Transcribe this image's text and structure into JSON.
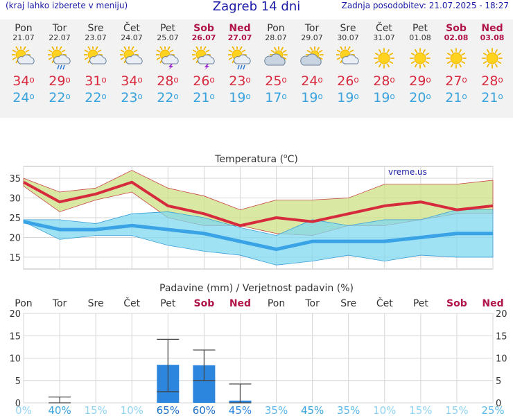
{
  "header": {
    "left_text": "(kraj lahko izberete v meniju)",
    "title": "Zagreb 14 dni",
    "updated": "Zadnja posodobitev: 21.07.2025 - 18:27"
  },
  "days": [
    {
      "name": "Pon",
      "date": "21.07",
      "weekend": false,
      "icon": "sun-cloud-icon",
      "tmax": "34",
      "tmin": "24"
    },
    {
      "name": "Tor",
      "date": "22.07",
      "weekend": false,
      "icon": "sun-cloud-rain-icon",
      "tmax": "29",
      "tmin": "22"
    },
    {
      "name": "Sre",
      "date": "23.07",
      "weekend": false,
      "icon": "sun-cloud-icon",
      "tmax": "31",
      "tmin": "22"
    },
    {
      "name": "Čet",
      "date": "24.07",
      "weekend": false,
      "icon": "sun-cloud-icon",
      "tmax": "34",
      "tmin": "23"
    },
    {
      "name": "Pet",
      "date": "25.07",
      "weekend": false,
      "icon": "sun-cloud-storm-icon",
      "tmax": "28",
      "tmin": "22"
    },
    {
      "name": "Sob",
      "date": "26.07",
      "weekend": true,
      "icon": "sun-cloud-storm-icon",
      "tmax": "26",
      "tmin": "21"
    },
    {
      "name": "Ned",
      "date": "27.07",
      "weekend": true,
      "icon": "sun-cloud-rain-icon",
      "tmax": "23",
      "tmin": "19"
    },
    {
      "name": "Pon",
      "date": "28.07",
      "weekend": false,
      "icon": "cloud-sun-icon",
      "tmax": "25",
      "tmin": "17"
    },
    {
      "name": "Tor",
      "date": "29.07",
      "weekend": false,
      "icon": "cloud-sun-icon",
      "tmax": "24",
      "tmin": "19"
    },
    {
      "name": "Sre",
      "date": "30.07",
      "weekend": false,
      "icon": "sun-cloud-icon",
      "tmax": "26",
      "tmin": "19"
    },
    {
      "name": "Čet",
      "date": "31.07",
      "weekend": false,
      "icon": "sun-icon",
      "tmax": "28",
      "tmin": "19"
    },
    {
      "name": "Pet",
      "date": "01.08",
      "weekend": false,
      "icon": "sun-icon",
      "tmax": "29",
      "tmin": "20"
    },
    {
      "name": "Sob",
      "date": "02.08",
      "weekend": true,
      "icon": "sun-icon",
      "tmax": "27",
      "tmin": "21"
    },
    {
      "name": "Ned",
      "date": "03.08",
      "weekend": true,
      "icon": "sun-icon",
      "tmax": "28",
      "tmin": "21"
    }
  ],
  "degree_symbol": "o",
  "colors": {
    "tmax": "#d9293f",
    "tmin": "#3aa3dd",
    "weekend": "#b0144a",
    "precip": "#2d86de"
  },
  "chart_data": [
    {
      "type": "line",
      "title": "Temperatura (oC)",
      "watermark": "vreme.us",
      "categories": [
        "Pon",
        "Tor",
        "Sre",
        "Čet",
        "Pet",
        "Sob",
        "Ned",
        "Pon",
        "Tor",
        "Sre",
        "Čet",
        "Pet",
        "Sob",
        "Ned"
      ],
      "ylim": [
        12,
        38
      ],
      "yticks": [
        15,
        20,
        25,
        30,
        35
      ],
      "grid": true,
      "series": [
        {
          "values": [
            34,
            29,
            31,
            34,
            28,
            26,
            23,
            25,
            24,
            26,
            28,
            29,
            27,
            28
          ]
        },
        {
          "values": [
            24,
            22,
            22,
            23,
            22,
            21,
            19,
            17,
            19,
            19,
            19,
            20,
            21,
            21
          ]
        }
      ],
      "max_band": {
        "upper": [
          35,
          31.5,
          32.5,
          37,
          32.5,
          30.5,
          27,
          29.5,
          29.5,
          30,
          33.5,
          33.5,
          33.5,
          34.5
        ],
        "lower": [
          33,
          26.5,
          29.5,
          31.5,
          25,
          23,
          23,
          21,
          20.5,
          23,
          23,
          24.5,
          26,
          26
        ]
      },
      "min_band": {
        "upper": [
          24.5,
          24.5,
          23.5,
          26,
          26.5,
          25,
          22.5,
          20.5,
          24.5,
          23,
          24.5,
          24.5,
          27,
          27
        ],
        "lower": [
          24,
          19.5,
          20.5,
          20.5,
          18,
          16.5,
          15.5,
          13,
          14,
          15.5,
          14,
          15.5,
          15,
          15
        ]
      }
    },
    {
      "type": "bar",
      "title": "Padavine (mm) / Verjetnost padavin (%)",
      "categories": [
        "Pon",
        "Tor",
        "Sre",
        "Čet",
        "Pet",
        "Sob",
        "Ned",
        "Pon",
        "Tor",
        "Sre",
        "Čet",
        "Pet",
        "Sob",
        "Ned"
      ],
      "weekend": [
        false,
        false,
        false,
        false,
        false,
        true,
        true,
        false,
        false,
        false,
        false,
        false,
        true,
        true
      ],
      "ylim": [
        0,
        20
      ],
      "yticks": [
        0,
        5,
        10,
        15,
        20
      ],
      "values": [
        0,
        0,
        0,
        0,
        8.5,
        8.4,
        0.5,
        0,
        0,
        0,
        0,
        0,
        0,
        0
      ],
      "error_high": [
        null,
        1.3,
        null,
        null,
        14.2,
        11.8,
        4.2,
        null,
        null,
        null,
        null,
        null,
        null,
        null
      ],
      "error_low": [
        null,
        0,
        null,
        null,
        2.5,
        5,
        0,
        null,
        null,
        null,
        null,
        null,
        null,
        null
      ],
      "probability": [
        "0%",
        "40%",
        "15%",
        "10%",
        "65%",
        "60%",
        "45%",
        "35%",
        "45%",
        "35%",
        "10%",
        "15%",
        "15%",
        "25%"
      ],
      "probability_colors": [
        "#8fd3f3",
        "#3aa3dd",
        "#8fd3f3",
        "#8fd3f3",
        "#1c6fc7",
        "#1c6fc7",
        "#2d86de",
        "#5bb8ea",
        "#3aa3dd",
        "#5bb8ea",
        "#8fd3f3",
        "#8fd3f3",
        "#8fd3f3",
        "#5bb8ea"
      ]
    }
  ]
}
